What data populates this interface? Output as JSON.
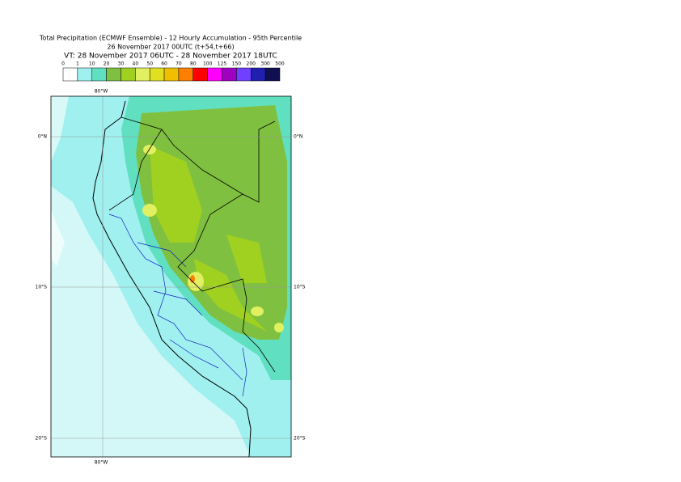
{
  "title": {
    "line1": "Total Precipitation (ECMWF Ensemble) - 12 Hourly Accumulation - 95th Percentile",
    "line2": "26 November 2017 00UTC (t+54,t+66)",
    "line3": "VT: 28 November 2017 06UTC - 28 November 2017 18UTC"
  },
  "legend": {
    "levels": [
      0,
      1,
      10,
      20,
      30,
      40,
      50,
      60,
      70,
      80,
      100,
      125,
      150,
      200,
      300,
      500
    ],
    "colors": [
      "#ffffff",
      "#a0f0f0",
      "#60e0c0",
      "#80c040",
      "#a0d020",
      "#e0f060",
      "#e0e020",
      "#f0c000",
      "#ff8000",
      "#ff0000",
      "#ff00ff",
      "#a000c0",
      "#7040ff",
      "#2020b0",
      "#101050"
    ]
  },
  "map": {
    "lon_label": "80°W",
    "lat_labels": [
      "0°N",
      "10°S",
      "20°S"
    ]
  }
}
